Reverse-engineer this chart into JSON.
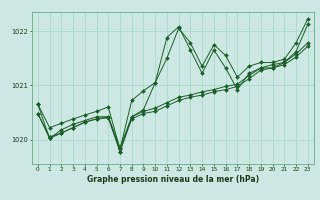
{
  "xlabel": "Graphe pression niveau de la mer (hPa)",
  "bg_color": "#cde8e2",
  "grid_color": "#a8d5c8",
  "line_color": "#1a5e28",
  "marker_color": "#1a5e28",
  "xlim": [
    -0.5,
    23.5
  ],
  "ylim": [
    1019.55,
    1022.35
  ],
  "yticks": [
    1020,
    1021,
    1022
  ],
  "xticks": [
    0,
    1,
    2,
    3,
    4,
    5,
    6,
    7,
    8,
    9,
    10,
    11,
    12,
    13,
    14,
    15,
    16,
    17,
    18,
    19,
    20,
    21,
    22,
    23
  ],
  "lines": [
    [
      1020.65,
      1020.22,
      1020.3,
      1020.38,
      1020.45,
      1020.52,
      1020.6,
      1019.82,
      1020.72,
      1020.9,
      1021.05,
      1021.5,
      1022.05,
      1021.78,
      1021.35,
      1021.75,
      1021.55,
      1021.15,
      1021.35,
      1021.42,
      1021.42,
      1021.48,
      1021.78,
      1022.22
    ],
    [
      1020.65,
      1020.02,
      1020.18,
      1020.28,
      1020.35,
      1020.42,
      1020.42,
      1019.78,
      1020.42,
      1020.55,
      1021.05,
      1021.88,
      1022.08,
      1021.65,
      1021.22,
      1021.65,
      1021.32,
      1020.92,
      1021.22,
      1021.32,
      1021.32,
      1021.42,
      1021.62,
      1022.12
    ],
    [
      1020.48,
      1020.02,
      1020.12,
      1020.22,
      1020.32,
      1020.38,
      1020.4,
      1019.78,
      1020.38,
      1020.48,
      1020.52,
      1020.62,
      1020.72,
      1020.78,
      1020.82,
      1020.88,
      1020.92,
      1020.98,
      1021.12,
      1021.28,
      1021.32,
      1021.38,
      1021.52,
      1021.72
    ],
    [
      1020.48,
      1020.05,
      1020.12,
      1020.22,
      1020.32,
      1020.38,
      1020.42,
      1019.85,
      1020.42,
      1020.52,
      1020.58,
      1020.68,
      1020.78,
      1020.82,
      1020.88,
      1020.92,
      1020.98,
      1021.02,
      1021.18,
      1021.32,
      1021.38,
      1021.42,
      1021.58,
      1021.78
    ]
  ]
}
